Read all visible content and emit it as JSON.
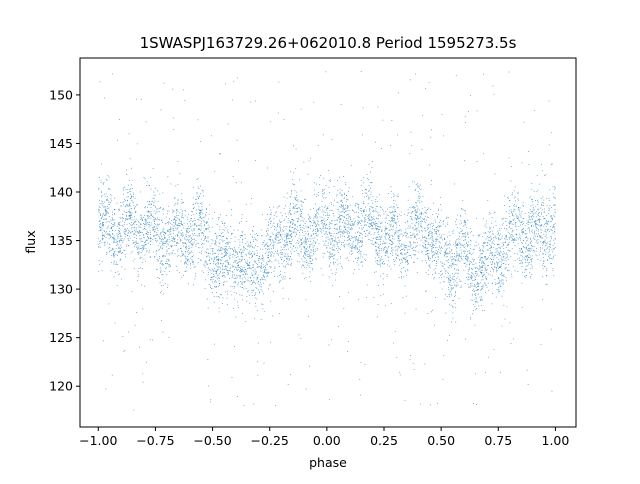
{
  "chart_data": {
    "type": "scatter",
    "title": "1SWASPJ163729.26+062010.8 Period 1595273.5s",
    "xlabel": "phase",
    "ylabel": "flux",
    "xlim": [
      -1.08,
      1.09
    ],
    "ylim": [
      115.8,
      153.8
    ],
    "xticks": [
      -1.0,
      -0.75,
      -0.5,
      -0.25,
      0.0,
      0.25,
      0.5,
      0.75,
      1.0
    ],
    "xtick_labels": [
      "−1.00",
      "−0.75",
      "−0.50",
      "−0.25",
      "0.00",
      "0.25",
      "0.50",
      "0.75",
      "1.00"
    ],
    "yticks": [
      120,
      125,
      130,
      135,
      140,
      145,
      150
    ],
    "ytick_labels": [
      "120",
      "125",
      "130",
      "135",
      "140",
      "145",
      "150"
    ],
    "grid": false,
    "legend": false,
    "colors": {
      "points": "#1f77b4"
    },
    "series": [
      {
        "points_per_cycle": 3000,
        "cycles": 2,
        "phase_range": [
          -1.0,
          1.0
        ],
        "mean_flux_profile": {
          "phase": [
            0.0,
            0.05,
            0.1,
            0.15,
            0.2,
            0.25,
            0.3,
            0.35,
            0.4,
            0.45,
            0.5,
            0.55,
            0.6,
            0.65,
            0.7,
            0.75,
            0.8,
            0.85,
            0.9,
            0.95,
            1.0
          ],
          "flux": [
            136.5,
            136.5,
            136,
            137,
            136.5,
            135.5,
            135,
            135.5,
            136,
            136,
            133.5,
            132.5,
            134,
            131.5,
            133,
            133.5,
            135,
            136,
            135.5,
            136,
            136.5
          ]
        },
        "core_scatter": 2.0,
        "outlier_range": [
          117.5,
          152.5
        ]
      }
    ]
  }
}
